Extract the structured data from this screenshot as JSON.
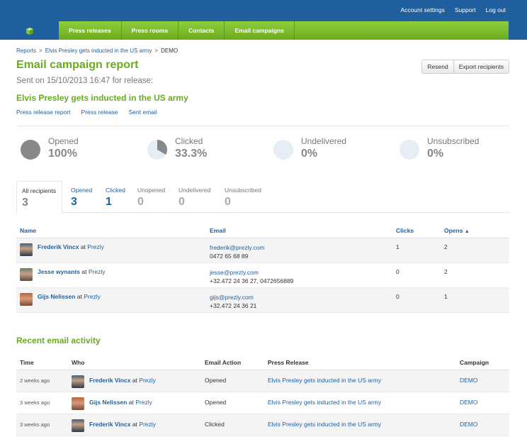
{
  "top_links": [
    "Account settings",
    "Support",
    "Log out"
  ],
  "nav": [
    "Press releases",
    "Press rooms",
    "Contacts",
    "Email campaigns"
  ],
  "breadcrumb": [
    "Reports",
    "Elvis Presley gets inducted in the US army",
    "DEMO"
  ],
  "title": "Email campaign report",
  "sent_line": "Sent on 15/10/2013 16:47 for release:",
  "release_title": "Elvis Presley gets inducted in the US army",
  "buttons": {
    "resend": "Resend",
    "export": "Export recipients"
  },
  "sublinks": [
    "Press release report",
    "Press release",
    "Sent email"
  ],
  "stats": [
    {
      "label": "Opened",
      "value": "100%",
      "fraction": 1.0
    },
    {
      "label": "Clicked",
      "value": "33.3%",
      "fraction": 0.333
    },
    {
      "label": "Undelivered",
      "value": "0%",
      "fraction": 0
    },
    {
      "label": "Unsubscribed",
      "value": "0%",
      "fraction": 0
    }
  ],
  "tabs": [
    {
      "label": "All recipients",
      "count": "3"
    },
    {
      "label": "Opened",
      "count": "3"
    },
    {
      "label": "Clicked",
      "count": "1"
    },
    {
      "label": "Unopened",
      "count": "0"
    },
    {
      "label": "Undelivered",
      "count": "0"
    },
    {
      "label": "Unsubscribed",
      "count": "0"
    }
  ],
  "recipients_headers": {
    "name": "Name",
    "email": "Email",
    "clicks": "Clicks",
    "opens": "Opens"
  },
  "recipients": [
    {
      "name": "Frederik Vincx",
      "at": "at",
      "org": "Prezly",
      "email": "frederik@prezly.com",
      "phone": "0472 65 68 89",
      "clicks": "1",
      "opens": "2"
    },
    {
      "name": "Jesse wynants",
      "at": "at",
      "org": "Prezly",
      "email": "jesse@prezly.com",
      "phone": "+32.472 24 36 27, 0472656889",
      "clicks": "0",
      "opens": "2"
    },
    {
      "name": "Gijs Nelissen",
      "at": "at",
      "org": "Prezly",
      "email": "gijs@prezly.com",
      "phone": "+32.472 24 36 21",
      "clicks": "0",
      "opens": "1"
    }
  ],
  "recent_title": "Recent email activity",
  "activity_headers": {
    "time": "Time",
    "who": "Who",
    "action": "Email Action",
    "release": "Press Release",
    "campaign": "Campaign"
  },
  "activity": [
    {
      "time": "2 weeks ago",
      "name": "Frederik Vincx",
      "at": "at",
      "org": "Prezly",
      "action": "Opened",
      "release": "Elvis Presley gets inducted in the US army",
      "campaign": "DEMO"
    },
    {
      "time": "3 weeks ago",
      "name": "Gijs Nelissen",
      "at": "at",
      "org": "Prezly",
      "action": "Opened",
      "release": "Elvis Presley gets inducted in the US army",
      "campaign": "DEMO"
    },
    {
      "time": "3 weeks ago",
      "name": "Frederik Vincx",
      "at": "at",
      "org": "Prezly",
      "action": "Clicked",
      "release": "Elvis Presley gets inducted in the US army",
      "campaign": "DEMO"
    }
  ],
  "colors": {
    "brand_blue": "#1f5f9e",
    "brand_green": "#6aaa22",
    "pie_fill": "#888888",
    "pie_bg": "#e6edf4"
  },
  "icons": {
    "logo": "prezly-logo-icon",
    "sort": "sort-ascending-icon"
  }
}
